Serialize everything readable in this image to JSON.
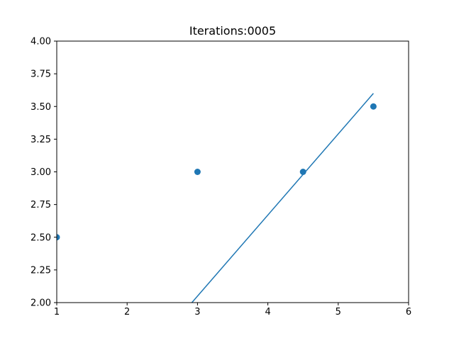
{
  "chart_data": {
    "type": "scatter",
    "title": "Iterations:0005",
    "xlabel": "",
    "ylabel": "",
    "xlim": [
      1,
      6
    ],
    "ylim": [
      2.0,
      4.0
    ],
    "xticks": [
      1,
      2,
      3,
      4,
      5,
      6
    ],
    "xtick_labels": [
      "1",
      "2",
      "3",
      "4",
      "5",
      "6"
    ],
    "yticks": [
      2.0,
      2.25,
      2.5,
      2.75,
      3.0,
      3.25,
      3.5,
      3.75,
      4.0
    ],
    "ytick_labels": [
      "2.00",
      "2.25",
      "2.50",
      "2.75",
      "3.00",
      "3.25",
      "3.50",
      "3.75",
      "4.00"
    ],
    "grid": false,
    "color": "#1f77b4",
    "points": [
      {
        "x": 1.0,
        "y": 2.5
      },
      {
        "x": 3.0,
        "y": 3.0
      },
      {
        "x": 4.5,
        "y": 3.0
      },
      {
        "x": 5.5,
        "y": 3.5
      }
    ],
    "fit_line": [
      {
        "x": 2.92,
        "y": 2.0
      },
      {
        "x": 5.5,
        "y": 3.6
      }
    ]
  }
}
